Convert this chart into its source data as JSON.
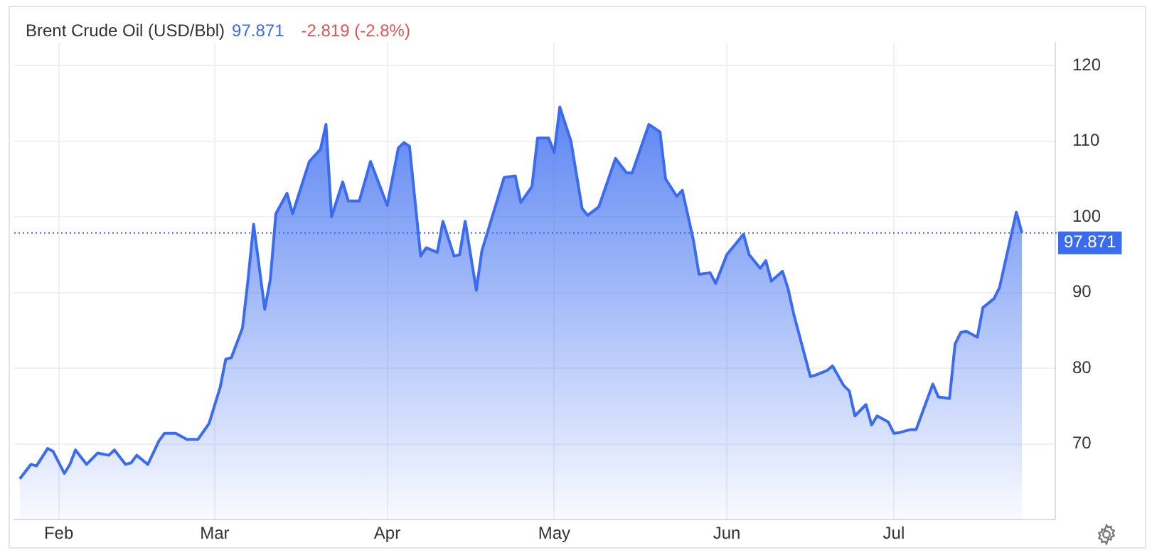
{
  "chart_data": {
    "type": "area",
    "title": "Brent Crude Oil (USD/Bbl)",
    "annotations": [
      "97.871",
      "-2.819 (-2.8%)"
    ],
    "x": [
      "--01-25",
      "--01-27",
      "--01-28",
      "--01-30",
      "--01-31",
      "--02-02",
      "--02-03",
      "--02-04",
      "--02-06",
      "--02-08",
      "--02-10",
      "--02-11",
      "--02-13",
      "--02-14",
      "--02-15",
      "--02-17",
      "--02-19",
      "--02-20",
      "--02-22",
      "--02-24",
      "--02-26",
      "--02-28",
      "--03-02",
      "--03-03",
      "--03-04",
      "--03-06",
      "--03-07",
      "--03-08",
      "--03-10",
      "--03-11",
      "--03-12",
      "--03-14",
      "--03-15",
      "--03-18",
      "--03-20",
      "--03-21",
      "--03-22",
      "--03-24",
      "--03-25",
      "--03-27",
      "--03-29",
      "--04-01",
      "--04-03",
      "--04-04",
      "--04-05",
      "--04-07",
      "--04-08",
      "--04-10",
      "--04-11",
      "--04-13",
      "--04-14",
      "--04-15",
      "--04-17",
      "--04-18",
      "--04-22",
      "--04-24",
      "--04-25",
      "--04-27",
      "--04-28",
      "--04-30",
      "--05-01",
      "--05-02",
      "--05-04",
      "--05-06",
      "--05-07",
      "--05-09",
      "--05-12",
      "--05-14",
      "--05-15",
      "--05-18",
      "--05-20",
      "--05-21",
      "--05-23",
      "--05-24",
      "--05-26",
      "--05-27",
      "--05-29",
      "--05-30",
      "--06-01",
      "--06-02",
      "--06-04",
      "--06-05",
      "--06-07",
      "--06-08",
      "--06-09",
      "--06-11",
      "--06-12",
      "--06-13",
      "--06-16",
      "--06-17",
      "--06-19",
      "--06-20",
      "--06-22",
      "--06-23",
      "--06-24",
      "--06-26",
      "--06-27",
      "--06-28",
      "--06-30",
      "--07-01",
      "--07-02",
      "--07-04",
      "--07-05",
      "--07-06",
      "--07-08",
      "--07-09",
      "--07-11",
      "--07-12",
      "--07-13",
      "--07-14",
      "--07-16",
      "--07-17",
      "--07-19",
      "--07-20",
      "--07-21",
      "--07-23",
      "--07-24"
    ],
    "series": [
      {
        "color": "#3b6cf0",
        "values": [
          65.4,
          67.3,
          67.1,
          69.4,
          69.0,
          66.1,
          67.3,
          69.2,
          67.3,
          68.8,
          68.5,
          69.2,
          67.3,
          67.5,
          68.5,
          67.3,
          70.4,
          71.4,
          71.4,
          70.6,
          70.6,
          72.7,
          77.5,
          81.2,
          81.4,
          85.3,
          91.7,
          99.0,
          87.8,
          91.7,
          100.4,
          103.1,
          100.4,
          107.3,
          108.9,
          112.2,
          100.0,
          104.6,
          102.1,
          102.1,
          107.3,
          101.5,
          109.1,
          109.8,
          109.3,
          94.8,
          95.9,
          95.3,
          99.4,
          94.8,
          95.0,
          99.4,
          90.3,
          95.5,
          105.2,
          105.4,
          101.9,
          104.0,
          110.4,
          110.4,
          108.5,
          114.5,
          110.0,
          101.1,
          100.2,
          101.3,
          107.7,
          105.8,
          105.8,
          112.2,
          111.2,
          105.0,
          102.7,
          103.5,
          96.9,
          92.4,
          92.6,
          91.2,
          95.0,
          95.9,
          97.7,
          95.0,
          93.2,
          94.2,
          91.5,
          92.8,
          90.5,
          87.2,
          78.9,
          79.1,
          79.7,
          80.3,
          77.7,
          77.0,
          73.7,
          75.2,
          72.5,
          73.7,
          72.9,
          71.4,
          71.5,
          71.9,
          71.9,
          73.9,
          77.9,
          76.2,
          76.0,
          83.2,
          84.7,
          84.9,
          84.1,
          88.0,
          89.2,
          90.7,
          94.0,
          100.6,
          97.9
        ]
      }
    ],
    "xlim": [
      "--01-24",
      "--07-30"
    ],
    "xticks": [
      {
        "value": "--02-01",
        "label": "Feb"
      },
      {
        "value": "--03-01",
        "label": "Mar"
      },
      {
        "value": "--04-01",
        "label": "Apr"
      },
      {
        "value": "--05-01",
        "label": "May"
      },
      {
        "value": "--06-01",
        "label": "Jun"
      },
      {
        "value": "--07-01",
        "label": "Jul"
      }
    ],
    "ylim": [
      60,
      123
    ],
    "yticks": [
      70,
      80,
      90,
      100,
      110,
      120
    ],
    "grid": true,
    "marker": "none",
    "ref_lines": [
      {
        "axis": "y",
        "value": 97.871,
        "label": "97.871",
        "color": "#3b6cf0",
        "line_style": "dotted"
      }
    ]
  }
}
